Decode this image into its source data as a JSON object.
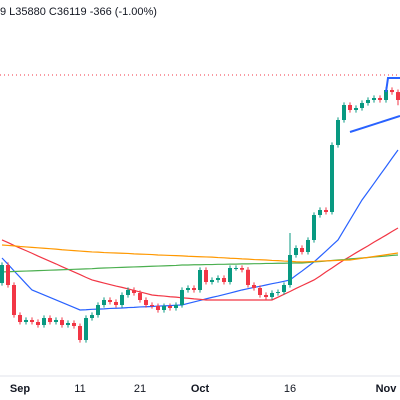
{
  "chart_data": {
    "type": "candlestick",
    "subtitle": "9 L35880 C36119 -366 (-1.00%)",
    "categories": [
      null,
      null,
      null,
      "Sep",
      null,
      null,
      null,
      null,
      null,
      null,
      null,
      null,
      null,
      "11",
      null,
      null,
      null,
      null,
      null,
      null,
      null,
      null,
      null,
      "21",
      null,
      null,
      null,
      null,
      null,
      null,
      null,
      null,
      null,
      "Oct",
      null,
      null,
      null,
      null,
      null,
      null,
      null,
      null,
      null,
      null,
      null,
      null,
      null,
      null,
      "16",
      null,
      null,
      null,
      null,
      null,
      null,
      null,
      null,
      null,
      null,
      null,
      null,
      null,
      null,
      null,
      "Nov",
      null,
      null
    ],
    "open": [
      27700,
      28529,
      27609,
      26229,
      25907,
      25999,
      25907,
      25769,
      26091,
      25907,
      25999,
      25769,
      25861,
      25723,
      25079,
      26091,
      26229,
      26689,
      26919,
      26827,
      26689,
      27149,
      27379,
      27241,
      26919,
      26689,
      26643,
      26459,
      26643,
      26551,
      26689,
      27379,
      27471,
      27379,
      28299,
      27747,
      27839,
      27931,
      27747,
      28391,
      28391,
      28310,
      27609,
      27471,
      27149,
      27057,
      27241,
      27287,
      27609,
      28989,
      29311,
      29127,
      29679,
      30829,
      31059,
      30967,
      34049,
      35199,
      35889,
      35659,
      35751,
      35981,
      36119,
      36211,
      36119,
      36579,
      36485
    ],
    "high": [
      28650,
      28650,
      27730,
      26350,
      26120,
      26120,
      26030,
      26210,
      26210,
      26120,
      26120,
      25980,
      25980,
      25840,
      26210,
      26350,
      26810,
      27040,
      27040,
      26950,
      27270,
      27500,
      27500,
      27360,
      27040,
      26810,
      26760,
      26760,
      26760,
      26810,
      27500,
      27590,
      27590,
      28420,
      28420,
      27960,
      28050,
      28050,
      28510,
      28510,
      28510,
      28430,
      27730,
      27590,
      27270,
      27360,
      27400,
      27730,
      30000,
      29430,
      29430,
      29800,
      30950,
      31180,
      31180,
      34170,
      35320,
      36010,
      36010,
      35870,
      36100,
      36240,
      36330,
      36330,
      36700,
      36700,
      36600
    ],
    "low": [
      27580,
      27490,
      26110,
      25790,
      25790,
      25790,
      25650,
      25650,
      25790,
      25790,
      25650,
      25650,
      25600,
      24960,
      24960,
      25970,
      26110,
      26570,
      26710,
      26570,
      26570,
      27030,
      27120,
      26800,
      26570,
      26520,
      26340,
      26340,
      26430,
      26430,
      26570,
      27260,
      27260,
      27260,
      27630,
      27630,
      27720,
      27630,
      27630,
      28270,
      28190,
      27490,
      27350,
      27030,
      26940,
      26940,
      27120,
      27170,
      27490,
      28870,
      29010,
      29010,
      29560,
      30710,
      30850,
      30850,
      33930,
      35080,
      35540,
      35540,
      35630,
      35860,
      36000,
      36000,
      36000,
      36360,
      35880
    ],
    "close": [
      28529,
      27609,
      26229,
      25907,
      25999,
      25907,
      25769,
      26091,
      25907,
      25999,
      25769,
      25861,
      25723,
      25079,
      26091,
      26229,
      26689,
      26919,
      26827,
      26689,
      27149,
      27379,
      27241,
      26919,
      26689,
      26643,
      26459,
      26643,
      26551,
      26689,
      27379,
      27471,
      27379,
      28299,
      27747,
      27839,
      27931,
      27747,
      28391,
      28391,
      28310,
      27609,
      27471,
      27149,
      27057,
      27241,
      27287,
      27609,
      28989,
      29311,
      29127,
      29679,
      30829,
      31059,
      30967,
      34049,
      35199,
      35889,
      35659,
      35751,
      35981,
      36119,
      36211,
      36119,
      36579,
      36485,
      36119
    ],
    "up_color": "#089981",
    "down_color": "#f23645",
    "series": [
      {
        "color": "#2962ff",
        "values": [
          28850,
          28560,
          28260,
          27970,
          27670,
          27380,
          27265,
          27150,
          27035,
          26920,
          26805,
          26690,
          26575,
          26460,
          26470,
          26490,
          26500,
          26510,
          26530,
          26540,
          26550,
          26570,
          26580,
          26600,
          26610,
          26620,
          26640,
          26650,
          26660,
          26680,
          26690,
          26760,
          26830,
          26900,
          26970,
          27040,
          27100,
          27170,
          27240,
          27310,
          27380,
          27440,
          27500,
          27550,
          27610,
          27670,
          27720,
          27780,
          27840,
          28050,
          28250,
          28460,
          28670,
          28920,
          29170,
          29430,
          29680,
          30140,
          30600,
          31060,
          31520,
          31900,
          32280,
          32670,
          33050,
          33440,
          33820
        ]
      },
      {
        "color": "#f23645",
        "values": [
          29680,
          29560,
          29430,
          29310,
          29190,
          29070,
          28940,
          28820,
          28700,
          28580,
          28450,
          28330,
          28210,
          28090,
          27960,
          27840,
          27770,
          27700,
          27630,
          27560,
          27500,
          27430,
          27360,
          27290,
          27220,
          27150,
          27120,
          27100,
          27070,
          27050,
          27020,
          27000,
          26970,
          26950,
          26920,
          26920,
          26920,
          26920,
          26920,
          26920,
          26920,
          26920,
          26920,
          26920,
          26920,
          26920,
          27050,
          27180,
          27310,
          27450,
          27580,
          27710,
          27840,
          28020,
          28210,
          28390,
          28580,
          28760,
          28920,
          29090,
          29250,
          29410,
          29580,
          29740,
          29900,
          30070,
          30230
        ]
      },
      {
        "color": "#4caf50",
        "values": [
          28210,
          28220,
          28230,
          28240,
          28250,
          28260,
          28270,
          28280,
          28290,
          28300,
          28310,
          28320,
          28330,
          28340,
          28350,
          28360,
          28380,
          28390,
          28400,
          28410,
          28420,
          28430,
          28440,
          28450,
          28460,
          28470,
          28480,
          28490,
          28500,
          28510,
          28530,
          28530,
          28540,
          28540,
          28550,
          28550,
          28560,
          28560,
          28570,
          28570,
          28580,
          28580,
          28590,
          28590,
          28600,
          28600,
          28610,
          28610,
          28620,
          28620,
          28620,
          28640,
          28670,
          28690,
          28710,
          28740,
          28760,
          28780,
          28810,
          28830,
          28850,
          28870,
          28900,
          28920,
          28940,
          28970,
          28990
        ]
      },
      {
        "color": "#ff9800",
        "values": [
          29450,
          29430,
          29410,
          29380,
          29360,
          29340,
          29320,
          29300,
          29280,
          29260,
          29230,
          29210,
          29190,
          29170,
          29150,
          29130,
          29120,
          29100,
          29090,
          29080,
          29070,
          29060,
          29040,
          29030,
          29020,
          29010,
          28990,
          28980,
          28970,
          28960,
          28950,
          28930,
          28920,
          28910,
          28900,
          28890,
          28870,
          28860,
          28840,
          28830,
          28810,
          28800,
          28780,
          28770,
          28760,
          28740,
          28730,
          28710,
          28700,
          28680,
          28670,
          28680,
          28690,
          28710,
          28720,
          28730,
          28740,
          28750,
          28760,
          28800,
          28840,
          28880,
          28920,
          28960,
          29000,
          29040,
          29080
        ]
      }
    ],
    "ylim": [
      23469,
      40719
    ]
  }
}
